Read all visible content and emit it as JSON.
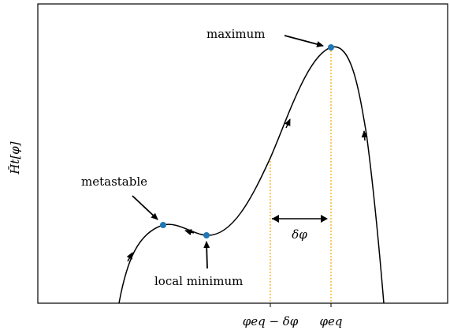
{
  "chart_data": {
    "type": "line",
    "title": "",
    "xlabel": "",
    "ylabel": "H̄t[φ]",
    "x_ticks_shown": false,
    "y_ticks_shown": false,
    "grid": false,
    "legend": "none",
    "curve_color": "#000000",
    "point_color": "#1f77b4",
    "guide_color": "#f5a800",
    "series": [
      {
        "values_description_free": true,
        "x": [
          0.25,
          0.27,
          0.3,
          0.33,
          0.36,
          0.4,
          0.44,
          0.48,
          0.52,
          0.56,
          0.6,
          0.64,
          0.68,
          0.72,
          0.74,
          0.76,
          0.78,
          0.8,
          0.82,
          0.84,
          0.86,
          0.88
        ],
        "y": [
          0.0,
          0.16,
          0.21,
          0.24,
          0.26,
          0.24,
          0.23,
          0.26,
          0.33,
          0.43,
          0.56,
          0.69,
          0.8,
          0.86,
          0.87,
          0.86,
          0.83,
          0.77,
          0.66,
          0.48,
          0.25,
          0.0
        ]
      }
    ],
    "key_points": [
      {
        "label": "metastable",
        "x": 0.36,
        "y": 0.26
      },
      {
        "label": "local minimum",
        "x": 0.44,
        "y": 0.23
      },
      {
        "label": "maximum",
        "x": 0.74,
        "y": 0.87
      }
    ],
    "tick_labels": [
      {
        "text": "φeq − δφ",
        "x": 0.6
      },
      {
        "text": "φeq",
        "x": 0.74
      }
    ],
    "delta_label": "δφ"
  }
}
